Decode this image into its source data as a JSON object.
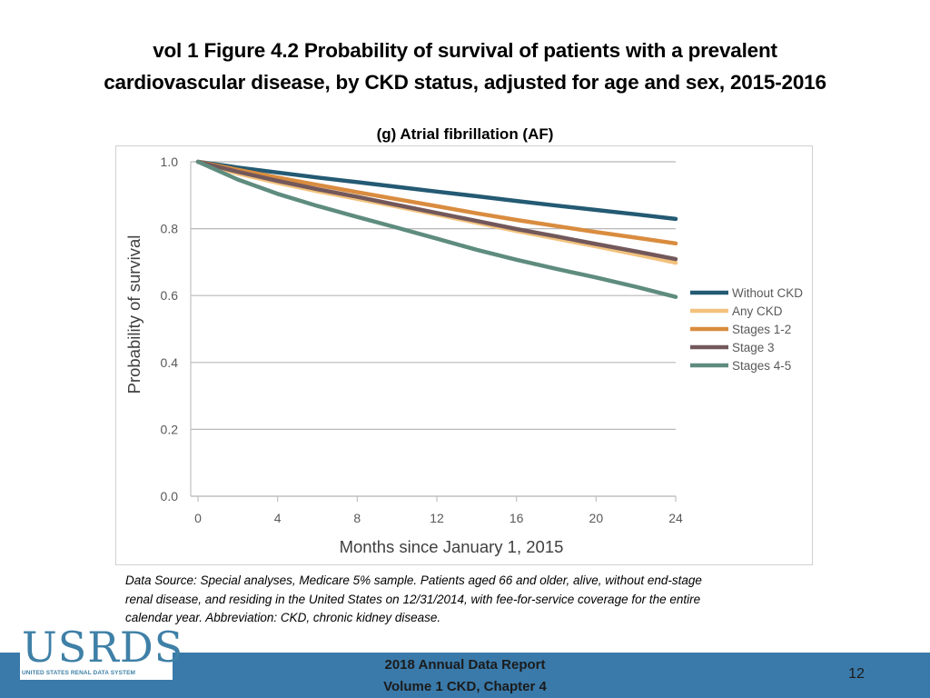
{
  "slide": {
    "title_line1": "vol 1 Figure 4.2 Probability of survival of patients with a prevalent",
    "title_line2": "cardiovascular disease, by CKD status, adjusted for age and sex, 2015-2016",
    "subtitle": "(g) Atrial fibrillation (AF)",
    "source_line1": "Data Source: Special analyses, Medicare 5% sample. Patients aged 66 and older, alive, without end-stage",
    "source_line2": "renal disease, and residing in the United States on 12/31/2014, with fee-for-service coverage for the entire",
    "source_line3": "calendar year. Abbreviation: CKD, chronic kidney disease.",
    "footer_line1": "2018 Annual Data Report",
    "footer_line2": "Volume 1 CKD, Chapter 4",
    "page_number": "12"
  },
  "logo": {
    "text": "USRDS",
    "subtext": "UNITED STATES RENAL DATA SYSTEM"
  },
  "colors": {
    "footer_bar": "#3a7aaa",
    "logo": "#3f80a7"
  },
  "chart_data": {
    "type": "line",
    "title": "(g) Atrial fibrillation (AF)",
    "xlabel": "Months since January 1, 2015",
    "ylabel": "Probability of survival",
    "xlim": [
      0,
      24
    ],
    "ylim": [
      0,
      1.0
    ],
    "xticks": [
      0,
      4,
      8,
      12,
      16,
      20,
      24
    ],
    "yticks": [
      0.0,
      0.2,
      0.4,
      0.6,
      0.8,
      1.0
    ],
    "ytick_labels": [
      "0.0",
      "0.2",
      "0.4",
      "0.6",
      "0.8",
      "1.0"
    ],
    "grid": true,
    "legend_position": "right",
    "x": [
      0,
      2,
      4,
      6,
      8,
      10,
      12,
      14,
      16,
      18,
      20,
      22,
      24
    ],
    "series": [
      {
        "name": "Without CKD",
        "color": "#245a73",
        "width": 4.5,
        "values": [
          1.0,
          0.983,
          0.968,
          0.953,
          0.939,
          0.925,
          0.911,
          0.897,
          0.883,
          0.869,
          0.856,
          0.843,
          0.829
        ]
      },
      {
        "name": "Any CKD",
        "color": "#f2c27d",
        "width": 4.5,
        "values": [
          1.0,
          0.965,
          0.937,
          0.912,
          0.889,
          0.866,
          0.842,
          0.818,
          0.793,
          0.77,
          0.747,
          0.723,
          0.698
        ]
      },
      {
        "name": "Stages 1-2",
        "color": "#d98c3f",
        "width": 4.5,
        "values": [
          1.0,
          0.976,
          0.953,
          0.931,
          0.909,
          0.888,
          0.867,
          0.846,
          0.826,
          0.808,
          0.79,
          0.773,
          0.756
        ]
      },
      {
        "name": "Stage 3",
        "color": "#73585b",
        "width": 4.5,
        "values": [
          1.0,
          0.97,
          0.943,
          0.918,
          0.895,
          0.871,
          0.847,
          0.823,
          0.799,
          0.777,
          0.754,
          0.732,
          0.709
        ]
      },
      {
        "name": "Stages 4-5",
        "color": "#5e8c7e",
        "width": 4.5,
        "values": [
          1.0,
          0.947,
          0.904,
          0.868,
          0.835,
          0.803,
          0.77,
          0.737,
          0.707,
          0.68,
          0.654,
          0.626,
          0.596
        ]
      }
    ]
  }
}
